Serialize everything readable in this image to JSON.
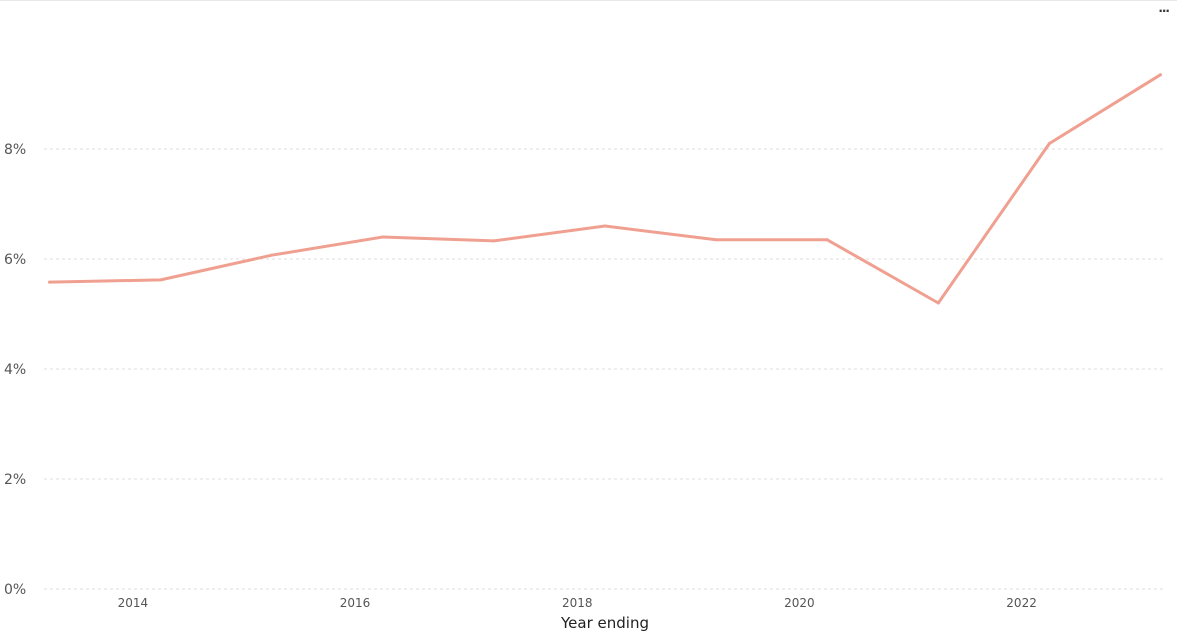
{
  "toolbar": {
    "more_label": "···"
  },
  "chart_data": {
    "type": "line",
    "title": "",
    "xlabel": "Year ending",
    "ylabel": "",
    "x": [
      2013.25,
      2014.25,
      2015.25,
      2016.25,
      2017.25,
      2018.25,
      2019.25,
      2020.25,
      2021.25,
      2022.25,
      2023.25
    ],
    "series": [
      {
        "name": "",
        "color": "#f0a090",
        "values": [
          5.58,
          5.62,
          6.07,
          6.4,
          6.33,
          6.6,
          6.35,
          6.35,
          5.2,
          8.1,
          9.35
        ]
      }
    ],
    "ylim": [
      0,
      10
    ],
    "xlim": [
      2013.2,
      2023.3
    ],
    "y_ticks": [
      0,
      2,
      4,
      6,
      8
    ],
    "y_tick_labels": [
      "0%",
      "2%",
      "4%",
      "6%",
      "8%"
    ],
    "x_ticks": [
      2014,
      2016,
      2018,
      2020,
      2022
    ],
    "x_tick_labels": [
      "2014",
      "2016",
      "2018",
      "2020",
      "2022"
    ],
    "grid": true,
    "legend": "none"
  }
}
